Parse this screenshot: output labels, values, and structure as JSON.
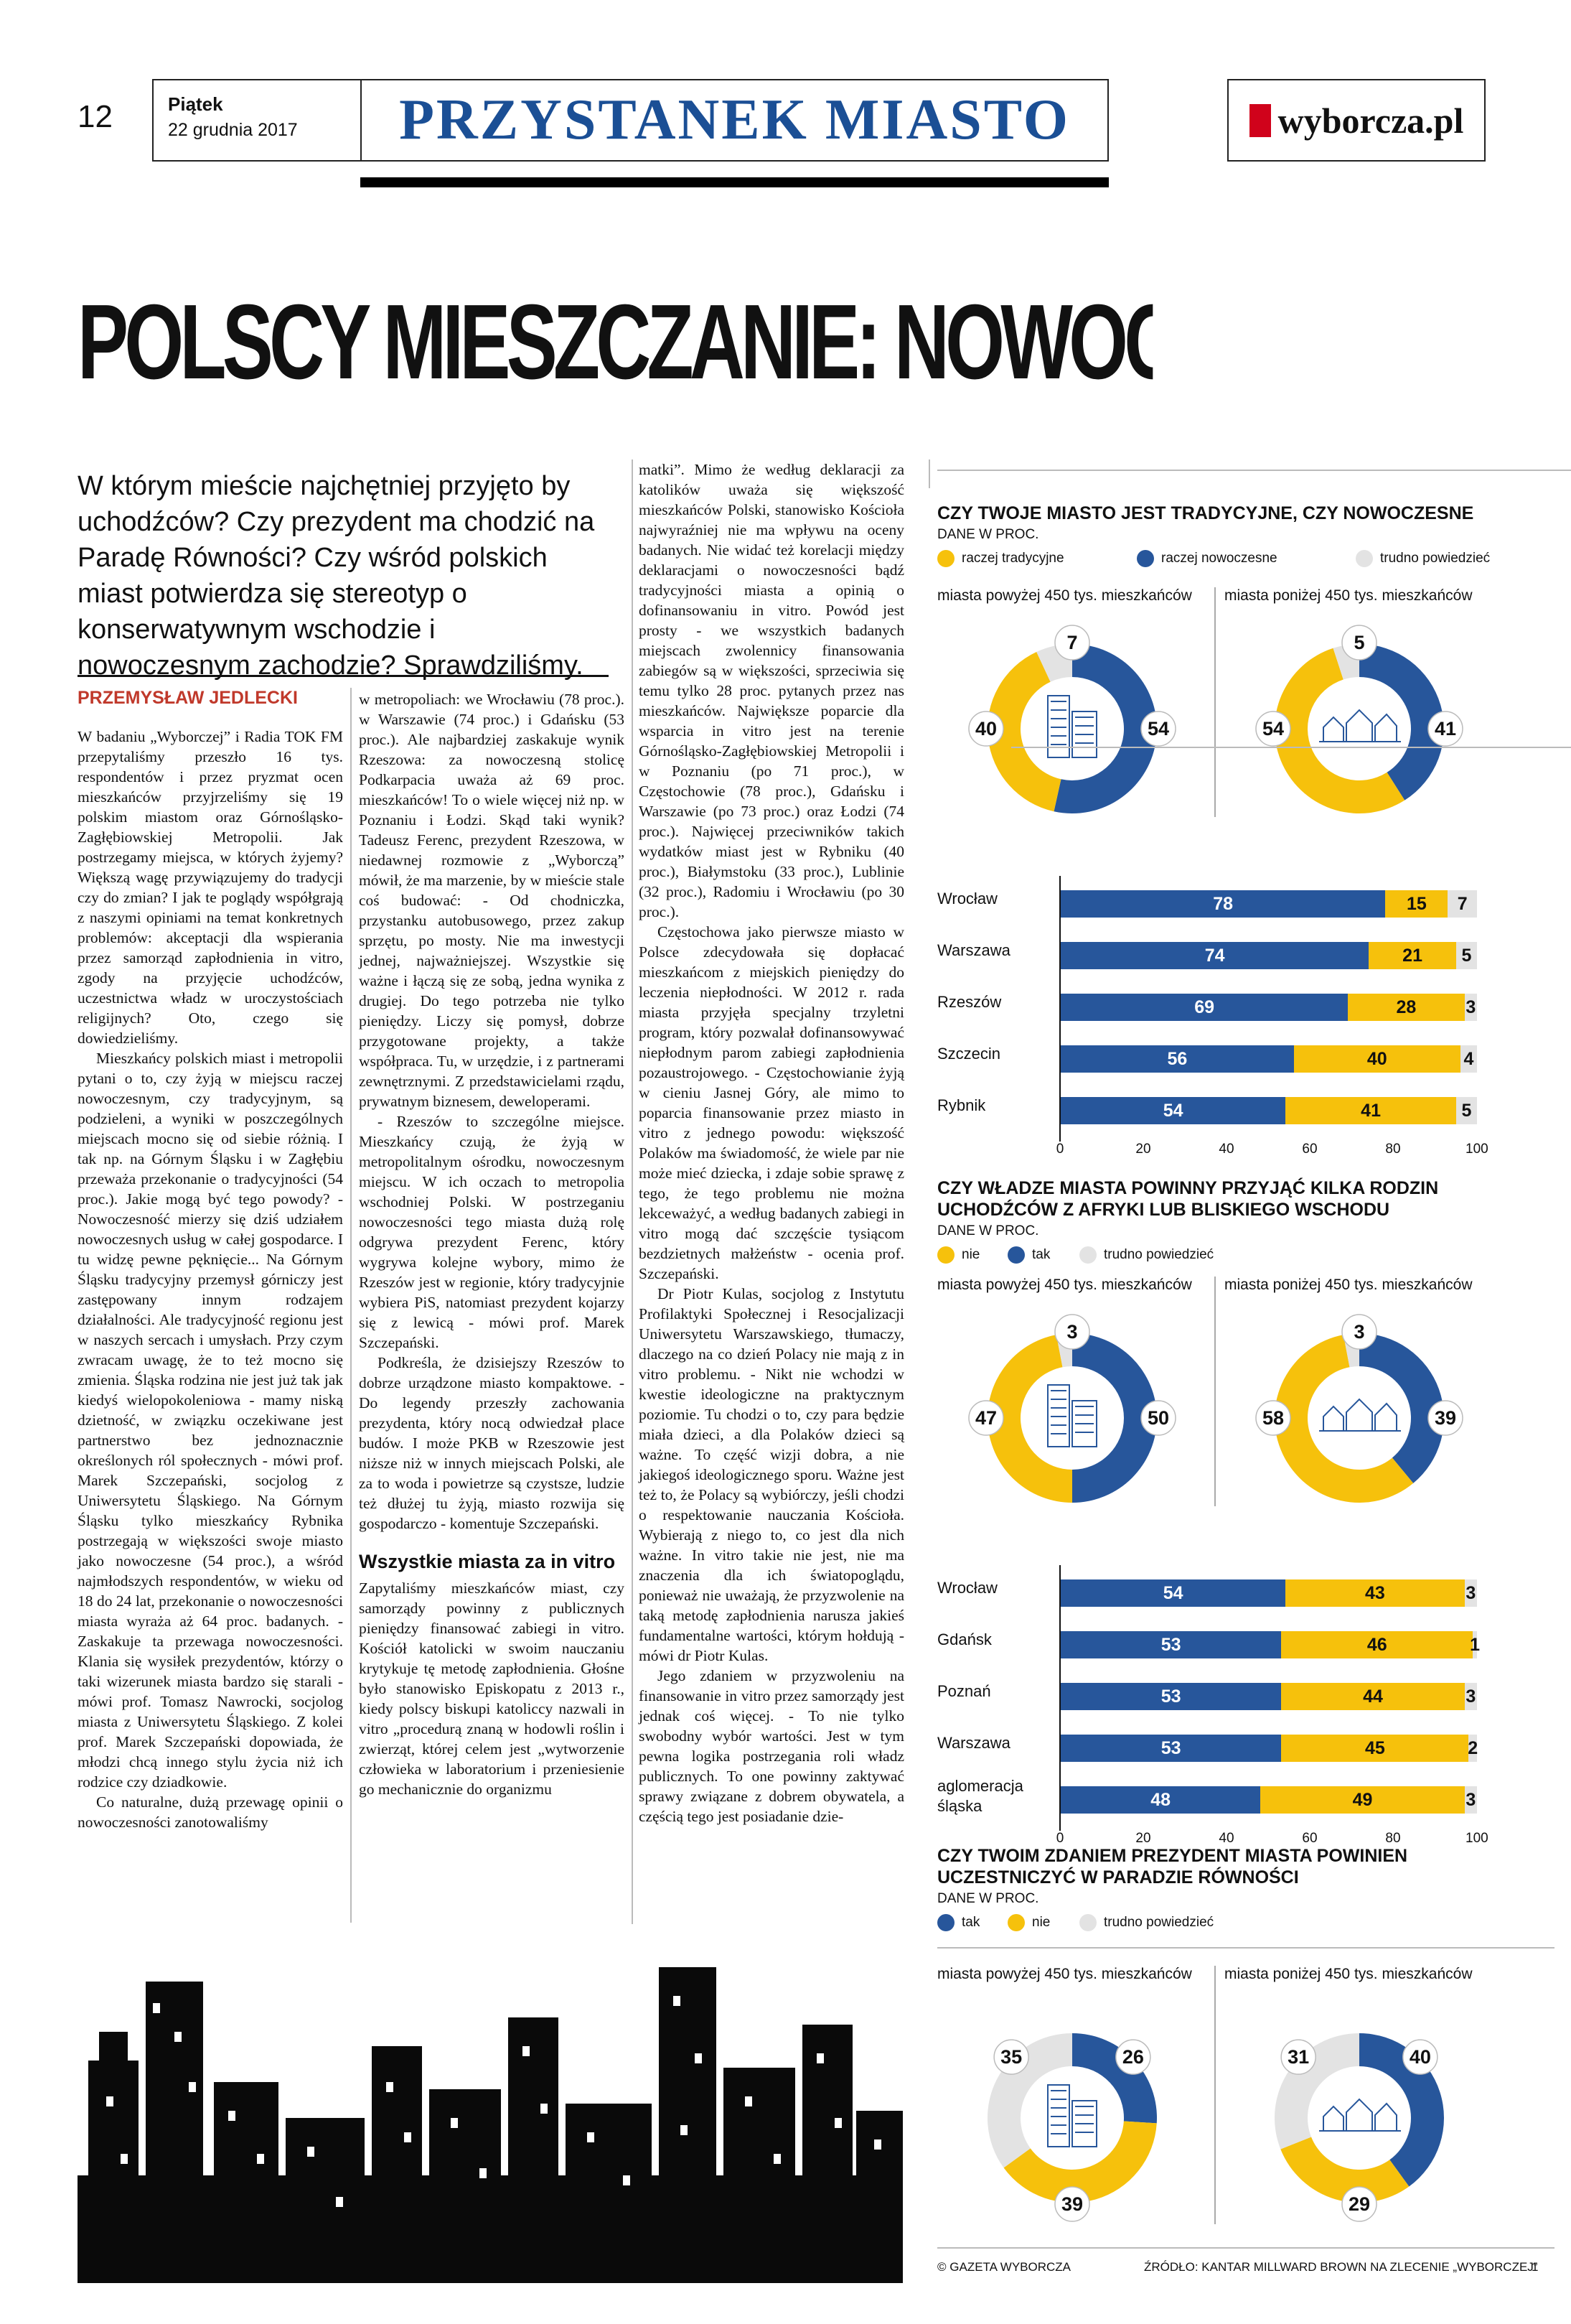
{
  "header": {
    "page_number": "12",
    "day": "Piątek",
    "date": "22 grudnia 2017",
    "section": "PRZYSTANEK MIASTO",
    "logo": "wyborcza.pl"
  },
  "article": {
    "headline": "POLSCY MIESZCZANIE: NOWOCZEŚNI CZY",
    "lead": "W którym mieście najchętniej przyjęto by uchodźców? Czy prezydent ma chodzić na Paradę Równości? Czy wśród polskich miast potwierdza się stereotyp o konserwatywnym wschodzie i nowoczesnym zachodzie? Sprawdziliśmy.",
    "author": "PRZEMYSŁAW JEDLECKI",
    "col1": [
      "W badaniu „Wyborczej” i Radia TOK FM przepytaliśmy przeszło 16 tys. respondentów i przez pryzmat ocen mieszkańców przyjrzeliśmy się 19 polskim miastom oraz Górnośląsko-Zagłębiowskiej Metropolii. Jak postrzegamy miejsca, w których żyjemy? Większą wagę przywiązujemy do tradycji czy do zmian? I jak te poglądy współgrają z naszymi opiniami na temat konkretnych problemów: akceptacji dla wspierania przez samorząd zapłodnienia in vitro, zgody na przyjęcie uchodźców, uczestnictwa władz w uroczystościach religijnych? Oto, czego się dowiedzieliśmy.",
      "Mieszkańcy polskich miast i metropolii pytani o to, czy żyją w miejscu raczej nowoczesnym, czy tradycyjnym, są podzieleni, a wyniki w poszczególnych miejscach mocno się od siebie różnią. I tak np. na Górnym Śląsku i w Zagłębiu przeważa przekonanie o tradycyjności (54 proc.). Jakie mogą być tego powody? - Nowoczesność mierzy się dziś udziałem nowoczesnych usług w całej gospodarce. I tu widzę pewne pęknięcie... Na Górnym Śląsku tradycyjny przemysł górniczy jest zastępowany innym rodzajem działalności. Ale tradycyjność regionu jest w naszych sercach i umysłach. Przy czym zwracam uwagę, że to też mocno się zmienia. Śląska rodzina nie jest już tak jak kiedyś wielopokoleniowa - mamy niską dzietność, w związku oczekiwane jest partnerstwo bez jednoznacznie określonych ról społecznych - mówi prof. Marek Szczepański, socjolog z Uniwersytetu Śląskiego. Na Górnym Śląsku tylko mieszkańcy Rybnika postrzegają w większości swoje miasto jako nowoczesne (54 proc.), a wśród najmłodszych respondentów, w wieku od 18 do 24 lat, przekonanie o nowoczesności miasta wyraża aż 64 proc. badanych. - Zaskakuje ta przewaga nowoczesności. Klania się wysiłek prezydentów, którzy o taki wizerunek miasta bardzo się starali - mówi prof. Tomasz Nawrocki, socjolog miasta z Uniwersytetu Śląskiego. Z kolei prof. Marek Szczepański dopowiada, że młodzi chcą innego stylu życia niż ich rodzice czy dziadkowie.",
      "Co naturalne, dużą przewagę opinii o nowoczesności zanotowaliśmy"
    ],
    "col2": [
      "w metropoliach: we Wrocławiu (78 proc.). w Warszawie (74 proc.) i Gdańsku (53 proc.). Ale najbardziej zaskakuje wynik Rzeszowa: za nowoczesną stolicę Podkarpacia uważa aż 69 proc. mieszkańców! To o wiele więcej niż np. w Poznaniu i Łodzi. Skąd taki wynik? Tadeusz Ferenc, prezydent Rzeszowa, w niedawnej rozmowie z „Wyborczą” mówił, że ma marzenie, by w mieście stale coś budować: - Od chodniczka, przystanku autobusowego, przez zakup sprzętu, po mosty. Nie ma inwestycji jednej, najważniejszej. Wszystkie się ważne i łączą się ze sobą, jedna wynika z drugiej. Do tego potrzeba nie tylko pieniędzy. Liczy się pomysł, dobrze przygotowane projekty, a także współpraca. Tu, w urzędzie, i z partnerami zewnętrznymi. Z przedstawicielami rządu, prywatnym biznesem, deweloperami.",
      "- Rzeszów to szczególne miejsce. Mieszkańcy czują, że żyją w metropolitalnym ośrodku, nowoczesnym miejscu. W ich oczach to metropolia wschodniej Polski. W postrzeganiu nowoczesności tego miasta dużą rolę odgrywa prezydent Ferenc, który wygrywa kolejne wybory, mimo że Rzeszów jest w regionie, który tradycyjnie wybiera PiS, natomiast prezydent kojarzy się z lewicą - mówi prof. Marek Szczepański.",
      "Podkreśla, że dzisiejszy Rzeszów to dobrze urządzone miasto kompaktowe. - Do legendy przeszły zachowania prezydenta, który nocą odwiedzał place budów. I może PKB w Rzeszowie jest niższe niż w innych miejscach Polski, ale za to woda i powietrze są czystsze, ludzie też dłużej tu żyją, miasto rozwija się gospodarczo - komentuje Szczepański."
    ],
    "col2_subhead": "Wszystkie miasta za in vitro",
    "col2_after": "Zapytaliśmy mieszkańców miast, czy samorządy powinny z publicznych pieniędzy finansować zabiegi in vitro. Kościół katolicki w swoim nauczaniu krytykuje tę metodę zapłodnienia. Głośne było stanowisko Episkopatu z 2013 r., kiedy polscy biskupi katoliccy nazwali in vitro „procedurą znaną w hodowli roślin i zwierząt, której celem jest „wytworzenie człowieka w laboratorium i przeniesienie go mechanicznie do organizmu",
    "col3": [
      "matki”. Mimo że według deklaracji za katolików uważa się większość mieszkańców Polski, stanowisko Kościoła najwyraźniej nie ma wpływu na oceny badanych. Nie widać też korelacji między deklaracjami o nowoczesności bądź tradycyjności miasta a opinią o dofinansowaniu in vitro. Powód jest prosty - we wszystkich badanych miejscach zwolennicy finansowania zabiegów są w większości, sprzeciwia się temu tylko 28 proc. pytanych przez nas mieszkańców. Największe poparcie dla wsparcia in vitro jest na terenie Górnośląsko-Zagłębiowskiej Metropolii i w Poznaniu (po 71 proc.), w Częstochowie (78 proc.), Gdańsku i Warszawie (po 73 proc.) oraz Łodzi (74 proc.). Najwięcej przeciwników takich wydatków miast jest w Rybniku (40 proc.), Białymstoku (33 proc.), Lublinie (32 proc.), Radomiu i Wrocławiu (po 30 proc.).",
      "Częstochowa jako pierwsze miasto w Polsce zdecydowała się dopłacać mieszkańcom z miejskich pieniędzy do leczenia niepłodności. W 2012 r. rada miasta przyjęła specjalny trzyletni program, który pozwalał dofinansowywać niepłodnym parom zabiegi zapłodnienia pozaustrojowego. - Częstochowianie żyją w cieniu Jasnej Góry, ale mimo to poparcia finansowanie przez miasto in vitro z jednego powodu: większość Polaków ma świadomość, że wiele par nie może mieć dziecka, i zdaje sobie sprawę z tego, że tego problemu nie można lekceważyć, a według badanych zabiegi in vitro mogą dać szczęście tysiącom bezdzietnych małżeństw - ocenia prof. Szczepański.",
      "Dr Piotr Kulas, socjolog z Instytutu Profilaktyki Społecznej i Resocjalizacji Uniwersytetu Warszawskiego, tłumaczy, dlaczego na co dzień Polacy nie mają z in vitro problemu. - Nikt nie wchodzi w kwestie ideologiczne na praktycznym poziomie. Tu chodzi o to, czy para będzie miała dzieci, a dla Polaków dzieci są ważne. To część wizji dobra, a nie jakiegoś ideologicznego sporu. Ważne jest też to, że Polacy są wybiórczy, jeśli chodzi o respektowanie nauczania Kościoła. Wybierają z niego to, co jest dla nich ważne. In vitro takie nie jest, nie ma znaczenia dla ich światopoglądu, ponieważ nie uważają, że przyzwolenie na taką metodę zapłodnienia narusza jakieś fundamentalne wartości, którym hołdują - mówi dr Piotr Kulas.",
      "Jego zdaniem w przyzwoleniu na finansowanie in vitro przez samorządy jest jednak coś więcej. - To nie tylko swobodny wybór wartości. Jest w tym pewna logika postrzegania roli władz publicznych. To one powinny zaktywać sprawy związane z dobrem obywatela, a częścią tego jest posiadanie dzie-"
    ]
  },
  "infographic": {
    "colors": {
      "yellow": "#f6c10c",
      "blue": "#27569b",
      "grey": "#e3e3e3"
    },
    "groups": [
      "miasta powyżej 450 tys. mieszkańców",
      "miasta poniżej 450 tys. mieszkańców"
    ],
    "footer_left": "© GAZETA WYBORCZA",
    "footer_right": "ŹRÓDŁO: KANTAR MILLWARD BROWN NA ZLECENIE „WYBORCZEJ”",
    "footer_page": "1",
    "ticks": [
      "0",
      "20",
      "40",
      "60",
      "80",
      "100"
    ],
    "q1": {
      "title": "CZY TWOJE MIASTO JEST TRADYCYJNE, CZY NOWOCZESNE",
      "subtitle": "DANE W PROC.",
      "legend": [
        "raczej tradycyjne",
        "raczej nowoczesne",
        "trudno powiedzieć"
      ],
      "donut_big": {
        "yellow": 40,
        "blue": 54,
        "grey": 7
      },
      "donut_small": {
        "yellow": 54,
        "blue": 41,
        "grey": 5
      },
      "bars": [
        {
          "city": "Wrocław",
          "blue": 78,
          "yellow": 15,
          "grey": 7
        },
        {
          "city": "Warszawa",
          "blue": 74,
          "yellow": 21,
          "grey": 5
        },
        {
          "city": "Rzeszów",
          "blue": 69,
          "yellow": 28,
          "grey": 3
        },
        {
          "city": "Szczecin",
          "blue": 56,
          "yellow": 40,
          "grey": 4
        },
        {
          "city": "Rybnik",
          "blue": 54,
          "yellow": 41,
          "grey": 5
        }
      ]
    },
    "q2": {
      "title": "CZY WŁADZE MIASTA POWINNY PRZYJĄĆ KILKA RODZIN UCHODŹCÓW Z AFRYKI LUB BLISKIEGO WSCHODU",
      "subtitle": "DANE W PROC.",
      "legend": [
        "nie",
        "tak",
        "trudno powiedzieć"
      ],
      "donut_big": {
        "yellow": 47,
        "blue": 50,
        "grey": 3
      },
      "donut_small": {
        "yellow": 58,
        "blue": 39,
        "grey": 3
      },
      "bars": [
        {
          "city": "Wrocław",
          "blue": 54,
          "yellow": 43,
          "grey": 3
        },
        {
          "city": "Gdańsk",
          "blue": 53,
          "yellow": 46,
          "grey": 1
        },
        {
          "city": "Poznań",
          "blue": 53,
          "yellow": 44,
          "grey": 3
        },
        {
          "city": "Warszawa",
          "blue": 53,
          "yellow": 45,
          "grey": 2
        },
        {
          "city": "aglomeracja śląska",
          "blue": 48,
          "yellow": 49,
          "grey": 3
        }
      ]
    },
    "q3": {
      "title": "CZY TWOIM ZDANIEM PREZYDENT MIASTA POWINIEN UCZESTNICZYĆ W PARADZIE RÓWNOŚCI",
      "subtitle": "DANE W PROC.",
      "legend": [
        "tak",
        "nie",
        "trudno powiedzieć"
      ],
      "donut_big": {
        "blue": 26,
        "yellow": 39,
        "grey": 35
      },
      "donut_small": {
        "blue": 40,
        "yellow": 29,
        "grey": 31
      }
    }
  }
}
